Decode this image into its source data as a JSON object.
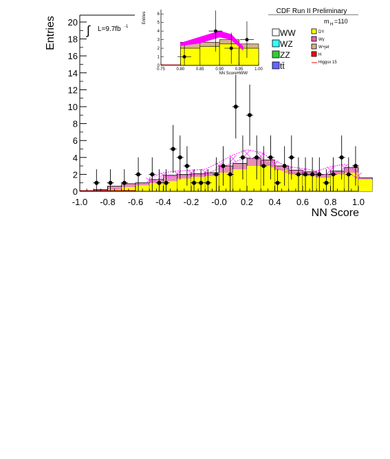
{
  "chart_data": {
    "type": "bar",
    "title": "CDF Run II Preliminary",
    "xlabel": "NN Score",
    "ylabel": "Entries",
    "xlim": [
      -1.0,
      1.0
    ],
    "ylim": [
      0,
      21
    ],
    "x_ticks": [
      "-1.0",
      "-0.8",
      "-0.6",
      "-0.4",
      "-0.2",
      "-0.0",
      "0.2",
      "0.4",
      "0.6",
      "0.8",
      "1.0"
    ],
    "y_ticks": [
      "0",
      "2",
      "4",
      "6",
      "8",
      "10",
      "12",
      "14",
      "16",
      "18",
      "20"
    ],
    "luminosity_label": "L=9.7fb",
    "luminosity_exp": "-1",
    "mass_label": "m",
    "mass_sub": "H",
    "mass_value": "=110",
    "legend": [
      {
        "label": "WW",
        "color": "#ffffff",
        "size": "big"
      },
      {
        "label": "DY",
        "color": "#ffff00",
        "size": "small"
      },
      {
        "label": "WZ",
        "color": "#33ffff",
        "size": "big"
      },
      {
        "label": "Wγ",
        "color": "#e066a0",
        "size": "small"
      },
      {
        "label": "ZZ",
        "color": "#33cc33",
        "size": "big"
      },
      {
        "label": "W+jet",
        "color": "#d2b48c",
        "size": "small"
      },
      {
        "label": "tt̄",
        "color": "#6666ff",
        "size": "big"
      },
      {
        "label": "H",
        "color": "#ff0000",
        "size": "small"
      },
      {
        "label": "Higgsx 15",
        "color": "#ff0000",
        "size": "small",
        "line": true
      }
    ],
    "bins": [
      {
        "x0": -1.0,
        "dy": 0.0,
        "tot": 0.0
      },
      {
        "x0": -0.9,
        "dy": 0.05,
        "tot": 0.2
      },
      {
        "x0": -0.8,
        "dy": 0.2,
        "tot": 0.6
      },
      {
        "x0": -0.7,
        "dy": 0.5,
        "tot": 0.9
      },
      {
        "x0": -0.6,
        "dy": 0.7,
        "tot": 1.0
      },
      {
        "x0": -0.5,
        "dy": 1.0,
        "tot": 1.4
      },
      {
        "x0": -0.4,
        "dy": 1.2,
        "tot": 1.9
      },
      {
        "x0": -0.3,
        "dy": 1.5,
        "tot": 2.0
      },
      {
        "x0": -0.2,
        "dy": 1.7,
        "tot": 2.1
      },
      {
        "x0": -0.1,
        "dy": 1.8,
        "tot": 2.2
      },
      {
        "x0": 0.0,
        "dy": 2.2,
        "tot": 3.0
      },
      {
        "x0": 0.1,
        "dy": 2.6,
        "tot": 3.3
      },
      {
        "x0": 0.2,
        "dy": 3.0,
        "tot": 3.9
      },
      {
        "x0": 0.3,
        "dy": 3.0,
        "tot": 3.7
      },
      {
        "x0": 0.4,
        "dy": 2.5,
        "tot": 3.0
      },
      {
        "x0": 0.5,
        "dy": 2.0,
        "tot": 2.5
      },
      {
        "x0": 0.6,
        "dy": 1.8,
        "tot": 2.3
      },
      {
        "x0": 0.7,
        "dy": 1.6,
        "tot": 2.0
      },
      {
        "x0": 0.8,
        "dy": 2.0,
        "tot": 2.4
      },
      {
        "x0": 0.9,
        "dy": 2.2,
        "tot": 2.8
      },
      {
        "x0": 1.0,
        "dy": 1.4,
        "tot": 1.6
      }
    ],
    "bin_width": 0.1,
    "signal_band": [
      {
        "x": -0.5,
        "lo": 1.0,
        "hi": 1.6
      },
      {
        "x": -0.4,
        "lo": 1.7,
        "hi": 2.2
      },
      {
        "x": -0.3,
        "lo": 1.8,
        "hi": 2.4
      },
      {
        "x": -0.2,
        "lo": 1.9,
        "hi": 2.5
      },
      {
        "x": -0.1,
        "lo": 2.0,
        "hi": 2.6
      },
      {
        "x": 0.0,
        "lo": 2.7,
        "hi": 3.4
      },
      {
        "x": 0.1,
        "lo": 3.4,
        "hi": 4.3
      },
      {
        "x": 0.2,
        "lo": 4.0,
        "hi": 4.9
      },
      {
        "x": 0.3,
        "lo": 3.7,
        "hi": 4.6
      },
      {
        "x": 0.4,
        "lo": 2.8,
        "hi": 3.6
      },
      {
        "x": 0.5,
        "lo": 2.2,
        "hi": 2.9
      },
      {
        "x": 0.6,
        "lo": 2.0,
        "hi": 2.7
      },
      {
        "x": 0.7,
        "lo": 1.8,
        "hi": 2.4
      },
      {
        "x": 0.8,
        "lo": 2.1,
        "hi": 2.9
      },
      {
        "x": 0.9,
        "lo": 2.4,
        "hi": 3.2
      },
      {
        "x": 1.0,
        "lo": 1.5,
        "hi": 2.2
      }
    ],
    "data_points": [
      {
        "x": -0.88,
        "y": 1
      },
      {
        "x": -0.78,
        "y": 1
      },
      {
        "x": -0.68,
        "y": 1
      },
      {
        "x": -0.58,
        "y": 2
      },
      {
        "x": -0.48,
        "y": 2
      },
      {
        "x": -0.43,
        "y": 1
      },
      {
        "x": -0.38,
        "y": 1
      },
      {
        "x": -0.33,
        "y": 5
      },
      {
        "x": -0.28,
        "y": 4
      },
      {
        "x": -0.23,
        "y": 3
      },
      {
        "x": -0.18,
        "y": 1
      },
      {
        "x": -0.13,
        "y": 1
      },
      {
        "x": -0.08,
        "y": 1
      },
      {
        "x": -0.02,
        "y": 2
      },
      {
        "x": 0.03,
        "y": 3
      },
      {
        "x": 0.08,
        "y": 2
      },
      {
        "x": 0.12,
        "y": 10
      },
      {
        "x": 0.17,
        "y": 4
      },
      {
        "x": 0.22,
        "y": 9
      },
      {
        "x": 0.27,
        "y": 4
      },
      {
        "x": 0.32,
        "y": 3
      },
      {
        "x": 0.37,
        "y": 4
      },
      {
        "x": 0.42,
        "y": 1
      },
      {
        "x": 0.47,
        "y": 3
      },
      {
        "x": 0.52,
        "y": 4
      },
      {
        "x": 0.57,
        "y": 2
      },
      {
        "x": 0.62,
        "y": 2
      },
      {
        "x": 0.67,
        "y": 2
      },
      {
        "x": 0.72,
        "y": 2
      },
      {
        "x": 0.77,
        "y": 1
      },
      {
        "x": 0.82,
        "y": 2
      },
      {
        "x": 0.88,
        "y": 4
      },
      {
        "x": 0.93,
        "y": 2
      },
      {
        "x": 0.98,
        "y": 3
      }
    ],
    "inset": {
      "xlabel": "NN ScoreHWW",
      "ylabel": "Entries",
      "xlim": [
        0.75,
        1.0
      ],
      "ylim": [
        0,
        6.5
      ],
      "x_ticks": [
        "0.75",
        "0.80",
        "0.85",
        "0.90",
        "0.95",
        "1.00"
      ],
      "y_ticks": [
        "0",
        "1",
        "2",
        "3",
        "4",
        "5",
        "6"
      ],
      "bins": [
        {
          "x0": 0.75,
          "x1": 0.8,
          "dy": 0.0,
          "wjet": 0.0
        },
        {
          "x0": 0.8,
          "x1": 0.85,
          "dy": 2.0,
          "wjet": 2.7
        },
        {
          "x0": 0.85,
          "x1": 0.9,
          "dy": 2.2,
          "wjet": 2.7
        },
        {
          "x0": 0.9,
          "x1": 0.95,
          "dy": 2.5,
          "wjet": 3.0
        },
        {
          "x0": 0.95,
          "x1": 1.0,
          "dy": 2.0,
          "wjet": 2.5
        }
      ],
      "signal": [
        {
          "x": 0.8,
          "lo": 2.3,
          "hi": 2.6
        },
        {
          "x": 0.85,
          "lo": 2.6,
          "hi": 3.3
        },
        {
          "x": 0.9,
          "lo": 3.3,
          "hi": 4.0
        },
        {
          "x": 0.93,
          "lo": 3.0,
          "hi": 3.6
        },
        {
          "x": 0.96,
          "lo": 1.8,
          "hi": 2.2
        }
      ],
      "data_points": [
        {
          "x": 0.81,
          "y": 1
        },
        {
          "x": 0.89,
          "y": 4
        },
        {
          "x": 0.93,
          "y": 2
        },
        {
          "x": 0.97,
          "y": 3
        }
      ]
    }
  }
}
